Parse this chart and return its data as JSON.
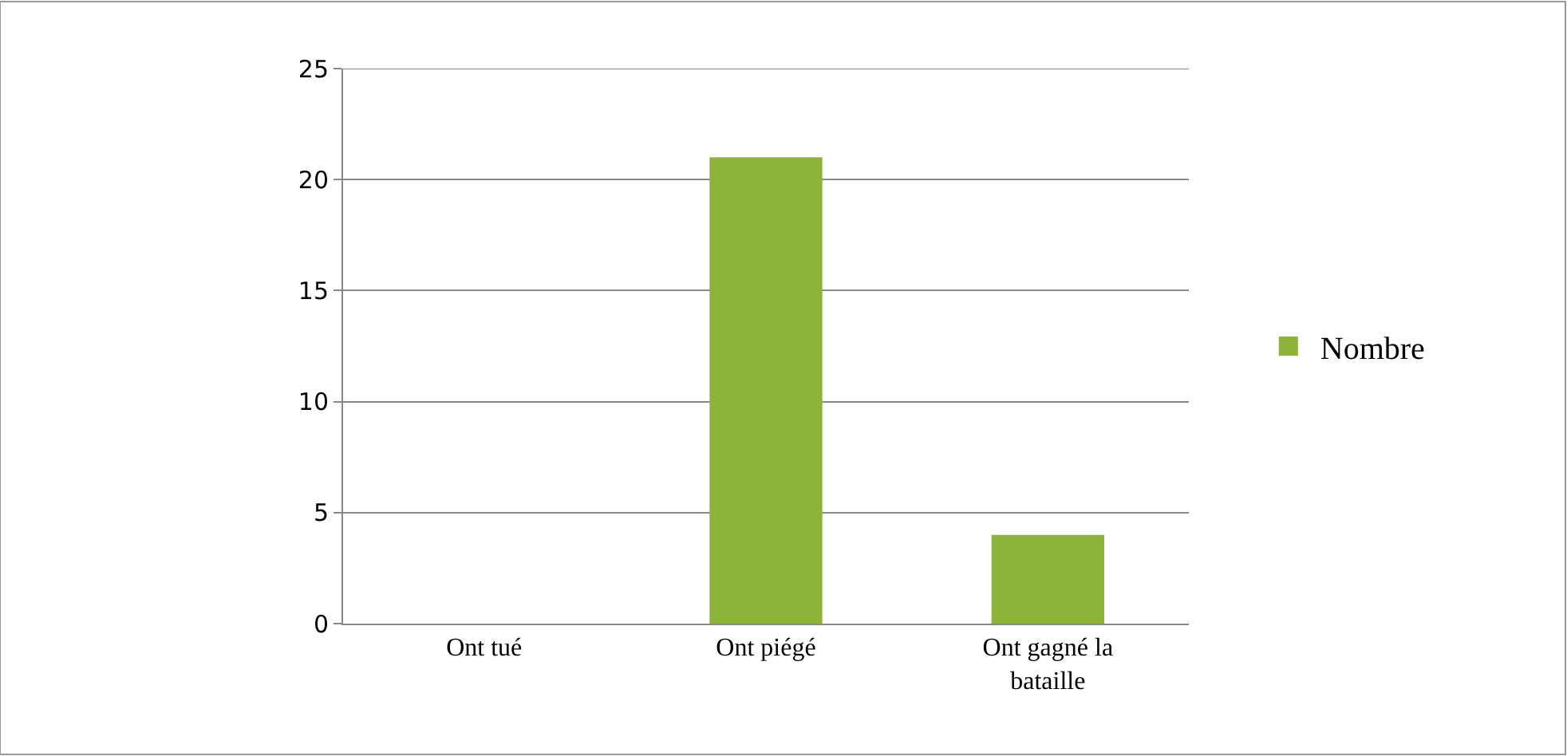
{
  "chart_data": {
    "type": "bar",
    "categories": [
      "Ont tué",
      "Ont piégé",
      "Ont gagné la bataille"
    ],
    "series": [
      {
        "name": "Nombre",
        "color": "#8db33a",
        "values": [
          0,
          21,
          4
        ]
      }
    ],
    "ylim": [
      0,
      25
    ],
    "yticks": [
      0,
      5,
      10,
      15,
      20,
      25
    ],
    "grid": "y",
    "legend": "right"
  }
}
